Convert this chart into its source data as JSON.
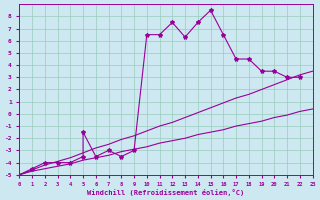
{
  "xlabel": "Windchill (Refroidissement éolien,°C)",
  "bg_color": "#cde8f0",
  "line_color": "#990099",
  "grid_color": "#99ccbb",
  "xlim": [
    0,
    23
  ],
  "ylim": [
    -5,
    9
  ],
  "xticks": [
    0,
    1,
    2,
    3,
    4,
    5,
    6,
    7,
    8,
    9,
    10,
    11,
    12,
    13,
    14,
    15,
    16,
    17,
    18,
    19,
    20,
    21,
    22,
    23
  ],
  "yticks": [
    -5,
    -4,
    -3,
    -2,
    -1,
    0,
    1,
    2,
    3,
    4,
    5,
    6,
    7,
    8
  ],
  "line1_x": [
    0,
    1,
    2,
    3,
    4,
    5,
    6,
    7,
    8,
    9,
    10,
    11,
    12,
    13,
    14,
    15,
    16,
    17,
    18,
    19,
    20,
    21,
    22,
    23
  ],
  "line1_y": [
    -5.0,
    -4.6,
    -4.2,
    -3.9,
    -3.6,
    -3.2,
    -2.8,
    -2.5,
    -2.1,
    -1.8,
    -1.4,
    -1.0,
    -0.7,
    -0.3,
    0.1,
    0.5,
    0.9,
    1.3,
    1.6,
    2.0,
    2.4,
    2.8,
    3.2,
    3.5
  ],
  "line2_x": [
    0,
    1,
    2,
    3,
    4,
    5,
    6,
    7,
    8,
    9,
    10,
    11,
    12,
    13,
    14,
    15,
    16,
    17,
    18,
    19,
    20,
    21,
    22,
    23
  ],
  "line2_y": [
    -5.0,
    -4.7,
    -4.5,
    -4.3,
    -4.1,
    -3.8,
    -3.6,
    -3.4,
    -3.1,
    -2.9,
    -2.7,
    -2.4,
    -2.2,
    -2.0,
    -1.7,
    -1.5,
    -1.3,
    -1.0,
    -0.8,
    -0.6,
    -0.3,
    -0.1,
    0.2,
    0.4
  ],
  "jagged_x": [
    0,
    1,
    2,
    3,
    4,
    5,
    5,
    6,
    7,
    8,
    9,
    10,
    11,
    12,
    13,
    14,
    15,
    16,
    17,
    18,
    19,
    20,
    21,
    22
  ],
  "jagged_y": [
    -5,
    -4.5,
    -4,
    -4,
    -4,
    -3.5,
    -1.5,
    -3.5,
    -3,
    -3.5,
    -3,
    6.5,
    6.5,
    7.5,
    6.3,
    7.5,
    8.5,
    6.5,
    4.5,
    4.5,
    3.5,
    3.5,
    3.0,
    3.0
  ]
}
